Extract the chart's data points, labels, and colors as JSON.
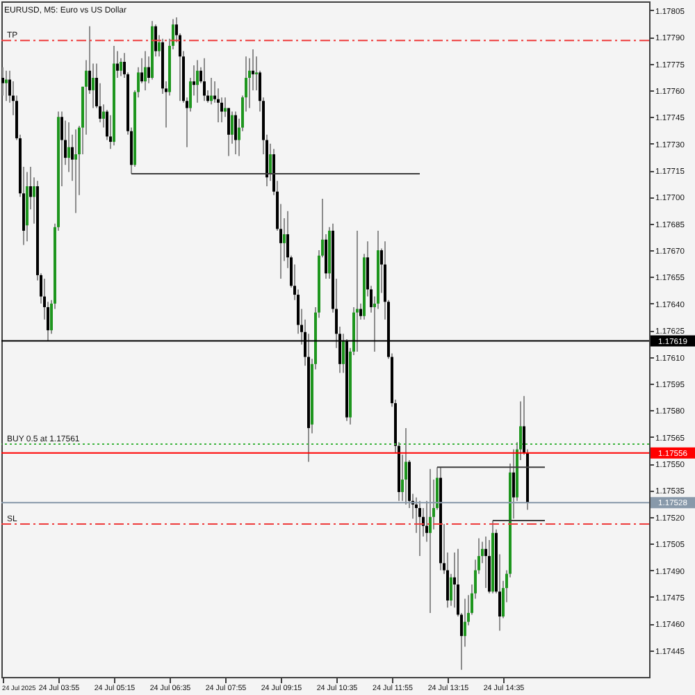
{
  "chart_data": {
    "type": "candlestick",
    "title": "EURUSD, M5: Euro vs US Dollar",
    "series": [
      {
        "color": "#8c8c8c",
        "x": [
          "2025-07-24T02:35",
          "2025-07-24T02:40",
          "2025-07-24T02:45",
          "2025-07-24T02:50",
          "2025-07-24T02:55",
          "2025-07-24T03:00",
          "2025-07-24T03:05",
          "2025-07-24T03:10",
          "2025-07-24T03:15",
          "2025-07-24T03:20",
          "2025-07-24T03:25",
          "2025-07-24T03:30",
          "2025-07-24T03:35",
          "2025-07-24T03:40",
          "2025-07-24T03:45",
          "2025-07-24T03:50",
          "2025-07-24T03:55",
          "2025-07-24T04:00",
          "2025-07-24T04:05",
          "2025-07-24T04:10",
          "2025-07-24T04:15",
          "2025-07-24T04:20",
          "2025-07-24T04:25",
          "2025-07-24T04:30",
          "2025-07-24T04:35",
          "2025-07-24T04:40",
          "2025-07-24T04:45",
          "2025-07-24T04:50",
          "2025-07-24T04:55",
          "2025-07-24T05:00",
          "2025-07-24T05:05",
          "2025-07-24T05:10",
          "2025-07-24T05:15",
          "2025-07-24T05:20",
          "2025-07-24T05:25",
          "2025-07-24T05:30",
          "2025-07-24T05:35",
          "2025-07-24T05:40",
          "2025-07-24T05:45",
          "2025-07-24T05:50",
          "2025-07-24T05:55",
          "2025-07-24T06:00",
          "2025-07-24T06:05",
          "2025-07-24T06:10",
          "2025-07-24T06:15",
          "2025-07-24T06:20",
          "2025-07-24T06:25",
          "2025-07-24T06:30",
          "2025-07-24T06:35",
          "2025-07-24T06:40",
          "2025-07-24T06:45",
          "2025-07-24T06:50",
          "2025-07-24T06:55",
          "2025-07-24T07:00",
          "2025-07-24T07:05",
          "2025-07-24T07:10",
          "2025-07-24T07:15",
          "2025-07-24T07:20",
          "2025-07-24T07:25",
          "2025-07-24T07:30",
          "2025-07-24T07:35",
          "2025-07-24T07:40",
          "2025-07-24T07:45",
          "2025-07-24T07:50",
          "2025-07-24T07:55",
          "2025-07-24T08:00",
          "2025-07-24T08:05",
          "2025-07-24T08:10",
          "2025-07-24T08:15",
          "2025-07-24T08:20",
          "2025-07-24T08:25",
          "2025-07-24T08:30",
          "2025-07-24T08:35",
          "2025-07-24T08:40",
          "2025-07-24T08:45",
          "2025-07-24T08:50",
          "2025-07-24T08:55",
          "2025-07-24T09:00",
          "2025-07-24T09:05",
          "2025-07-24T09:10",
          "2025-07-24T09:15",
          "2025-07-24T09:20",
          "2025-07-24T09:25",
          "2025-07-24T09:30",
          "2025-07-24T09:35",
          "2025-07-24T09:40",
          "2025-07-24T09:45",
          "2025-07-24T09:50",
          "2025-07-24T09:55",
          "2025-07-24T10:00",
          "2025-07-24T10:05",
          "2025-07-24T10:10",
          "2025-07-24T10:15",
          "2025-07-24T10:20",
          "2025-07-24T10:25",
          "2025-07-24T10:30",
          "2025-07-24T10:35",
          "2025-07-24T10:40",
          "2025-07-24T10:45",
          "2025-07-24T10:50",
          "2025-07-24T10:55",
          "2025-07-24T11:00",
          "2025-07-24T11:05",
          "2025-07-24T11:10",
          "2025-07-24T11:15",
          "2025-07-24T11:20",
          "2025-07-24T11:25",
          "2025-07-24T11:30",
          "2025-07-24T11:35",
          "2025-07-24T11:40",
          "2025-07-24T11:45",
          "2025-07-24T11:50",
          "2025-07-24T11:55",
          "2025-07-24T12:00",
          "2025-07-24T12:05",
          "2025-07-24T12:10",
          "2025-07-24T12:15",
          "2025-07-24T12:20",
          "2025-07-24T12:25",
          "2025-07-24T12:30",
          "2025-07-24T12:35",
          "2025-07-24T12:40",
          "2025-07-24T12:45",
          "2025-07-24T12:50",
          "2025-07-24T12:55",
          "2025-07-24T13:00",
          "2025-07-24T13:05",
          "2025-07-24T13:10",
          "2025-07-24T13:15",
          "2025-07-24T13:20",
          "2025-07-24T13:25",
          "2025-07-24T13:30",
          "2025-07-24T13:35",
          "2025-07-24T13:40",
          "2025-07-24T13:45",
          "2025-07-24T13:50",
          "2025-07-24T13:55",
          "2025-07-24T14:00",
          "2025-07-24T14:05",
          "2025-07-24T14:10",
          "2025-07-24T14:15",
          "2025-07-24T14:20",
          "2025-07-24T14:25",
          "2025-07-24T14:30",
          "2025-07-24T14:35",
          "2025-07-24T14:40",
          "2025-07-24T14:45",
          "2025-07-24T14:50",
          "2025-07-24T14:55",
          "2025-07-24T15:00",
          "2025-07-24T15:05",
          "2025-07-24T15:10"
        ],
        "ohlc": [
          [
            1.17767,
            1.17773,
            1.17757,
            1.17764
          ],
          [
            1.17764,
            1.17771,
            1.17754,
            1.17766
          ],
          [
            1.17766,
            1.17771,
            1.17753,
            1.17757
          ],
          [
            1.17757,
            1.17765,
            1.17746,
            1.17754
          ],
          [
            1.17754,
            1.17757,
            1.17732,
            1.17733
          ],
          [
            1.17733,
            1.17735,
            1.177,
            1.17702
          ],
          [
            1.17702,
            1.17717,
            1.17673,
            1.17681
          ],
          [
            1.17684,
            1.17714,
            1.17675,
            1.17706
          ],
          [
            1.17706,
            1.17717,
            1.17693,
            1.177
          ],
          [
            1.177,
            1.17711,
            1.17685,
            1.17706
          ],
          [
            1.17706,
            1.17709,
            1.17653,
            1.17656
          ],
          [
            1.17656,
            1.17657,
            1.1764,
            1.17644
          ],
          [
            1.17644,
            1.17654,
            1.17631,
            1.17638
          ],
          [
            1.17638,
            1.17641,
            1.17619,
            1.17625
          ],
          [
            1.17625,
            1.17642,
            1.17623,
            1.1764
          ],
          [
            1.1764,
            1.17685,
            1.17637,
            1.17683
          ],
          [
            1.17683,
            1.17748,
            1.17681,
            1.17745
          ],
          [
            1.17745,
            1.17748,
            1.17706,
            1.17732
          ],
          [
            1.17732,
            1.17743,
            1.17718,
            1.17722
          ],
          [
            1.17722,
            1.17742,
            1.17714,
            1.17728
          ],
          [
            1.17728,
            1.17735,
            1.17709,
            1.17721
          ],
          [
            1.17721,
            1.17738,
            1.17691,
            1.17724
          ],
          [
            1.17724,
            1.1774,
            1.17701,
            1.17739
          ],
          [
            1.17739,
            1.17762,
            1.17724,
            1.17762
          ],
          [
            1.17762,
            1.17777,
            1.17735,
            1.17771
          ],
          [
            1.17771,
            1.17796,
            1.17758,
            1.1776
          ],
          [
            1.1776,
            1.17775,
            1.1775,
            1.17767
          ],
          [
            1.17767,
            1.17775,
            1.1775,
            1.17751
          ],
          [
            1.17751,
            1.17764,
            1.17742,
            1.17744
          ],
          [
            1.17744,
            1.17752,
            1.17739,
            1.17748
          ],
          [
            1.17748,
            1.17749,
            1.17732,
            1.17734
          ],
          [
            1.17734,
            1.17746,
            1.17727,
            1.17731
          ],
          [
            1.17731,
            1.17785,
            1.17729,
            1.17775
          ],
          [
            1.17775,
            1.17782,
            1.17767,
            1.17771
          ],
          [
            1.17771,
            1.17778,
            1.17768,
            1.17776
          ],
          [
            1.17776,
            1.17781,
            1.17767,
            1.17769
          ],
          [
            1.17769,
            1.1777,
            1.17735,
            1.17737
          ],
          [
            1.17737,
            1.17739,
            1.17713,
            1.17718
          ],
          [
            1.17718,
            1.1776,
            1.17717,
            1.17759
          ],
          [
            1.17759,
            1.17773,
            1.17756,
            1.1777
          ],
          [
            1.1777,
            1.17778,
            1.17764,
            1.17765
          ],
          [
            1.17765,
            1.17782,
            1.1776,
            1.17773
          ],
          [
            1.17773,
            1.17779,
            1.17764,
            1.17767
          ],
          [
            1.17767,
            1.17799,
            1.17766,
            1.17796
          ],
          [
            1.17796,
            1.17797,
            1.17779,
            1.17782
          ],
          [
            1.17782,
            1.17791,
            1.17779,
            1.17787
          ],
          [
            1.17787,
            1.17789,
            1.17758,
            1.17761
          ],
          [
            1.17761,
            1.17765,
            1.17739,
            1.17759
          ],
          [
            1.17759,
            1.17789,
            1.17757,
            1.17785
          ],
          [
            1.17785,
            1.178,
            1.17783,
            1.17797
          ],
          [
            1.17797,
            1.17801,
            1.17787,
            1.17791
          ],
          [
            1.17791,
            1.17792,
            1.17754,
            1.17779
          ],
          [
            1.17779,
            1.17782,
            1.17753,
            1.17754
          ],
          [
            1.17754,
            1.17756,
            1.17728,
            1.1775
          ],
          [
            1.1775,
            1.17767,
            1.17748,
            1.17765
          ],
          [
            1.17765,
            1.17774,
            1.17757,
            1.17763
          ],
          [
            1.17763,
            1.17777,
            1.17753,
            1.17771
          ],
          [
            1.17771,
            1.17773,
            1.17764,
            1.17765
          ],
          [
            1.17765,
            1.17778,
            1.17754,
            1.17757
          ],
          [
            1.17757,
            1.1776,
            1.17753,
            1.17754
          ],
          [
            1.17754,
            1.17767,
            1.17752,
            1.17757
          ],
          [
            1.17757,
            1.17765,
            1.17753,
            1.17755
          ],
          [
            1.17755,
            1.17761,
            1.17742,
            1.17753
          ],
          [
            1.17753,
            1.17756,
            1.17742,
            1.17748
          ],
          [
            1.17748,
            1.17756,
            1.17745,
            1.1775
          ],
          [
            1.1775,
            1.1775,
            1.17723,
            1.17735
          ],
          [
            1.17735,
            1.17748,
            1.1773,
            1.17746
          ],
          [
            1.17746,
            1.17748,
            1.17724,
            1.17732
          ],
          [
            1.17732,
            1.17744,
            1.17723,
            1.17739
          ],
          [
            1.17739,
            1.17757,
            1.17737,
            1.17756
          ],
          [
            1.17756,
            1.17779,
            1.17748,
            1.17767
          ],
          [
            1.17767,
            1.17778,
            1.1775,
            1.17771
          ],
          [
            1.17771,
            1.17783,
            1.1776,
            1.17769
          ],
          [
            1.17769,
            1.17779,
            1.1776,
            1.1777
          ],
          [
            1.1777,
            1.17771,
            1.17748,
            1.17754
          ],
          [
            1.17754,
            1.17756,
            1.17724,
            1.17732
          ],
          [
            1.17732,
            1.17735,
            1.17706,
            1.17711
          ],
          [
            1.17713,
            1.1773,
            1.17709,
            1.17724
          ],
          [
            1.17724,
            1.17727,
            1.17701,
            1.17703
          ],
          [
            1.17703,
            1.17709,
            1.17681,
            1.17682
          ],
          [
            1.17682,
            1.17696,
            1.17654,
            1.17674
          ],
          [
            1.17674,
            1.17688,
            1.17664,
            1.17679
          ],
          [
            1.17679,
            1.17692,
            1.1766,
            1.17666
          ],
          [
            1.17666,
            1.17667,
            1.17649,
            1.1765
          ],
          [
            1.1765,
            1.17662,
            1.17642,
            1.17645
          ],
          [
            1.17645,
            1.17648,
            1.17623,
            1.17628
          ],
          [
            1.17628,
            1.17637,
            1.17617,
            1.17624
          ],
          [
            1.17624,
            1.17631,
            1.17605,
            1.1761
          ],
          [
            1.1761,
            1.17623,
            1.17551,
            1.1757
          ],
          [
            1.17572,
            1.17609,
            1.17567,
            1.17606
          ],
          [
            1.17606,
            1.17638,
            1.17603,
            1.17635
          ],
          [
            1.17635,
            1.1767,
            1.17632,
            1.17667
          ],
          [
            1.17667,
            1.17699,
            1.17666,
            1.17676
          ],
          [
            1.17676,
            1.17679,
            1.17654,
            1.17657
          ],
          [
            1.17657,
            1.17683,
            1.17654,
            1.17681
          ],
          [
            1.17681,
            1.17685,
            1.17635,
            1.17637
          ],
          [
            1.17637,
            1.17654,
            1.17615,
            1.17623
          ],
          [
            1.17623,
            1.17627,
            1.17601,
            1.17606
          ],
          [
            1.17606,
            1.17623,
            1.17601,
            1.17619
          ],
          [
            1.17619,
            1.1762,
            1.17574,
            1.17576
          ],
          [
            1.17576,
            1.17615,
            1.17572,
            1.17613
          ],
          [
            1.17613,
            1.17638,
            1.17611,
            1.17635
          ],
          [
            1.17635,
            1.17681,
            1.17613,
            1.17637
          ],
          [
            1.17637,
            1.1764,
            1.17631,
            1.17633
          ],
          [
            1.17633,
            1.17668,
            1.17631,
            1.17666
          ],
          [
            1.17666,
            1.17675,
            1.17644,
            1.17648
          ],
          [
            1.17648,
            1.1765,
            1.17635,
            1.17638
          ],
          [
            1.17638,
            1.17644,
            1.17613,
            1.1764
          ],
          [
            1.1764,
            1.17681,
            1.17637,
            1.1767
          ],
          [
            1.1767,
            1.17671,
            1.17646,
            1.17662
          ],
          [
            1.17662,
            1.17675,
            1.17631,
            1.17641
          ],
          [
            1.17641,
            1.17642,
            1.17609,
            1.1761
          ],
          [
            1.1761,
            1.17612,
            1.17582,
            1.17584
          ],
          [
            1.17584,
            1.17586,
            1.17556,
            1.1756
          ],
          [
            1.1756,
            1.17562,
            1.17529,
            1.17534
          ],
          [
            1.17534,
            1.17555,
            1.17529,
            1.17541
          ],
          [
            1.17541,
            1.1757,
            1.17527,
            1.17551
          ],
          [
            1.17551,
            1.17552,
            1.17525,
            1.17529
          ],
          [
            1.17529,
            1.17533,
            1.17519,
            1.17527
          ],
          [
            1.17527,
            1.17531,
            1.17511,
            1.17525
          ],
          [
            1.17525,
            1.17529,
            1.17498,
            1.1752
          ],
          [
            1.1752,
            1.17525,
            1.17509,
            1.17515
          ],
          [
            1.17515,
            1.17529,
            1.17506,
            1.17511
          ],
          [
            1.17511,
            1.17547,
            1.17466,
            1.1752
          ],
          [
            1.1752,
            1.17541,
            1.17513,
            1.17525
          ],
          [
            1.17525,
            1.17548,
            1.17524,
            1.17542
          ],
          [
            1.17542,
            1.17548,
            1.1749,
            1.17494
          ],
          [
            1.17494,
            1.17516,
            1.17488,
            1.1749
          ],
          [
            1.1749,
            1.175,
            1.17469,
            1.17473
          ],
          [
            1.17473,
            1.17488,
            1.1747,
            1.17486
          ],
          [
            1.17486,
            1.175,
            1.17469,
            1.17482
          ],
          [
            1.17482,
            1.17502,
            1.17464,
            1.17465
          ],
          [
            1.17465,
            1.17466,
            1.17434,
            1.17453
          ],
          [
            1.17453,
            1.17474,
            1.17447,
            1.17461
          ],
          [
            1.17461,
            1.17476,
            1.17459,
            1.17466
          ],
          [
            1.17466,
            1.17482,
            1.17465,
            1.17477
          ],
          [
            1.17477,
            1.17496,
            1.17474,
            1.1749
          ],
          [
            1.1749,
            1.17508,
            1.17488,
            1.17498
          ],
          [
            1.17498,
            1.17506,
            1.17494,
            1.17502
          ],
          [
            1.17502,
            1.17509,
            1.1748,
            1.17498
          ],
          [
            1.17498,
            1.17507,
            1.17477,
            1.17478
          ],
          [
            1.17478,
            1.17518,
            1.17477,
            1.17511
          ],
          [
            1.17511,
            1.17513,
            1.17477,
            1.17478
          ],
          [
            1.17478,
            1.17499,
            1.17456,
            1.17464
          ],
          [
            1.17464,
            1.17484,
            1.17463,
            1.1748
          ],
          [
            1.1748,
            1.1749,
            1.17472,
            1.17488
          ],
          [
            1.17488,
            1.1755,
            1.17486,
            1.17545
          ],
          [
            1.17545,
            1.17558,
            1.17519,
            1.17531
          ],
          [
            1.17531,
            1.17562,
            1.17529,
            1.17558
          ],
          [
            1.17558,
            1.17585,
            1.17552,
            1.17571
          ],
          [
            1.17571,
            1.17588,
            1.17555,
            1.17556
          ],
          [
            1.17556,
            1.17558,
            1.17524,
            1.17528
          ]
        ],
        "colors": [
          "#000000",
          "#1e961e",
          "#000000",
          "#000000",
          "#000000",
          "#000000",
          "#000000",
          "#1e961e",
          "#000000",
          "#1e961e",
          "#000000",
          "#000000",
          "#000000",
          "#000000",
          "#1e961e",
          "#1e961e",
          "#1e961e",
          "#000000",
          "#000000",
          "#1e961e",
          "#000000",
          "#1e961e",
          "#1e961e",
          "#1e961e",
          "#1e961e",
          "#000000",
          "#1e961e",
          "#000000",
          "#000000",
          "#1e961e",
          "#000000",
          "#000000",
          "#1e961e",
          "#000000",
          "#1e961e",
          "#000000",
          "#000000",
          "#000000",
          "#1e961e",
          "#1e961e",
          "#000000",
          "#1e961e",
          "#000000",
          "#1e961e",
          "#000000",
          "#1e961e",
          "#000000",
          "#000000",
          "#1e961e",
          "#1e961e",
          "#000000",
          "#000000",
          "#000000",
          "#000000",
          "#1e961e",
          "#000000",
          "#1e961e",
          "#000000",
          "#000000",
          "#000000",
          "#1e961e",
          "#000000",
          "#000000",
          "#000000",
          "#1e961e",
          "#000000",
          "#1e961e",
          "#000000",
          "#1e961e",
          "#1e961e",
          "#1e961e",
          "#1e961e",
          "#000000",
          "#1e961e",
          "#000000",
          "#000000",
          "#000000",
          "#1e961e",
          "#000000",
          "#000000",
          "#000000",
          "#1e961e",
          "#000000",
          "#000000",
          "#000000",
          "#000000",
          "#000000",
          "#000000",
          "#000000",
          "#1e961e",
          "#1e961e",
          "#1e961e",
          "#1e961e",
          "#000000",
          "#1e961e",
          "#000000",
          "#000000",
          "#000000",
          "#1e961e",
          "#000000",
          "#1e961e",
          "#1e961e",
          "#1e961e",
          "#000000",
          "#1e961e",
          "#000000",
          "#000000",
          "#1e961e",
          "#1e961e",
          "#000000",
          "#000000",
          "#000000",
          "#000000",
          "#000000",
          "#000000",
          "#1e961e",
          "#1e961e",
          "#000000",
          "#000000",
          "#000000",
          "#000000",
          "#000000",
          "#000000",
          "#1e961e",
          "#1e961e",
          "#1e961e",
          "#000000",
          "#000000",
          "#000000",
          "#1e961e",
          "#000000",
          "#000000",
          "#000000",
          "#1e961e",
          "#1e961e",
          "#1e961e",
          "#1e961e",
          "#1e961e",
          "#1e961e",
          "#000000",
          "#000000",
          "#1e961e",
          "#000000",
          "#000000",
          "#1e961e",
          "#1e961e",
          "#1e961e",
          "#000000",
          "#1e961e",
          "#1e961e",
          "#000000",
          "#000000"
        ]
      },
      {
        "type": "line",
        "x": [
          "2025-07-24T05:40",
          "2025-07-24T12:35"
        ],
        "values": [
          1.17713,
          1.17713
        ],
        "color": "#3c3c3c"
      },
      {
        "type": "line",
        "x": [
          "2025-07-24T13:00",
          "2025-07-24T15:35"
        ],
        "values": [
          1.17548,
          1.17548
        ],
        "color": "#3c3c3c"
      },
      {
        "type": "line",
        "x": [
          "2025-07-24T14:20",
          "2025-07-24T15:35"
        ],
        "values": [
          1.17518,
          1.17518
        ],
        "color": "#3c3c3c"
      }
    ],
    "ref_lines": [
      {
        "axis": "y",
        "value": 1.17788,
        "label": "TP",
        "color": "#ee3b3b",
        "line_style": "dashdot"
      },
      {
        "axis": "y",
        "value": 1.17619,
        "label": "1.17619",
        "color": "#000000",
        "line_style": "solid"
      },
      {
        "axis": "y",
        "value": 1.17561,
        "label": "BUY 0.5 at 1.17561",
        "color": "#3cb43c",
        "line_style": "dotted"
      },
      {
        "axis": "y",
        "value": 1.17556,
        "label": "1.17556",
        "color": "#ff0000",
        "line_style": "solid"
      },
      {
        "axis": "y",
        "value": 1.17528,
        "label": "1.17528",
        "color": "#8899aa",
        "line_style": "solid"
      },
      {
        "axis": "y",
        "value": 1.17516,
        "label": "SL",
        "color": "#ee3b3b",
        "line_style": "dashdot"
      }
    ],
    "xlim": [
      "2025-07-24T02:33",
      "2025-07-24T18:05"
    ],
    "ylim": [
      1.1743,
      1.1781
    ],
    "xticks": [
      {
        "value": "2025-07-24T02:35",
        "label": "24 Jul 2025"
      },
      {
        "value": "2025-07-24T03:55",
        "label": "24 Jul 03:55"
      },
      {
        "value": "2025-07-24T05:15",
        "label": "24 Jul 05:15"
      },
      {
        "value": "2025-07-24T06:35",
        "label": "24 Jul 06:35"
      },
      {
        "value": "2025-07-24T07:55",
        "label": "24 Jul 07:55"
      },
      {
        "value": "2025-07-24T09:15",
        "label": "24 Jul 09:15"
      },
      {
        "value": "2025-07-24T10:35",
        "label": "24 Jul 10:35"
      },
      {
        "value": "2025-07-24T11:55",
        "label": "24 Jul 11:55"
      },
      {
        "value": "2025-07-24T13:15",
        "label": "24 Jul 13:15"
      },
      {
        "value": "2025-07-24T14:35",
        "label": "24 Jul 14:35"
      }
    ],
    "yticks": [
      1.17445,
      {
        "value": 1.1746,
        "label": "1.17460"
      },
      1.17475,
      {
        "value": 1.1749,
        "label": "1.17490"
      },
      1.17505,
      {
        "value": 1.1752,
        "label": "1.17520"
      },
      1.17535,
      {
        "value": 1.1755,
        "label": "1.17550"
      },
      1.17565,
      {
        "value": 1.1758,
        "label": "1.17580"
      },
      1.17595,
      {
        "value": 1.1761,
        "label": "1.17610"
      },
      1.17625,
      {
        "value": 1.1764,
        "label": "1.17640"
      },
      1.17655,
      {
        "value": 1.1767,
        "label": "1.17670"
      },
      1.17685,
      {
        "value": 1.177,
        "label": "1.17700"
      },
      1.17715,
      {
        "value": 1.1773,
        "label": "1.17730"
      },
      1.17745,
      {
        "value": 1.1776,
        "label": "1.17760"
      },
      1.17775,
      {
        "value": 1.1779,
        "label": "1.17790"
      },
      1.17805
    ]
  }
}
